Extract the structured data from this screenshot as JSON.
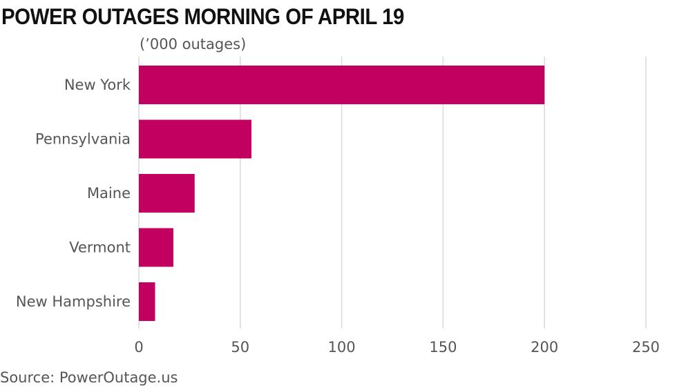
{
  "chart_data": {
    "type": "bar",
    "orientation": "horizontal",
    "title": "POWER OUTAGES MORNING OF APRIL 19",
    "subtitle": "(’000 outages)",
    "categories": [
      "New York",
      "Pennsylvania",
      "Maine",
      "Vermont",
      "New Hampshire"
    ],
    "values": [
      200,
      55.5,
      27.5,
      17,
      8
    ],
    "xlim": [
      0,
      250
    ],
    "xticks": [
      0,
      50,
      100,
      150,
      200,
      250
    ],
    "grid": true,
    "source": "Source: PowerOutage.us"
  },
  "colors": {
    "bar": "#c2005f",
    "grid": "#d9d9d9",
    "text": "#555555",
    "title": "#111111"
  }
}
